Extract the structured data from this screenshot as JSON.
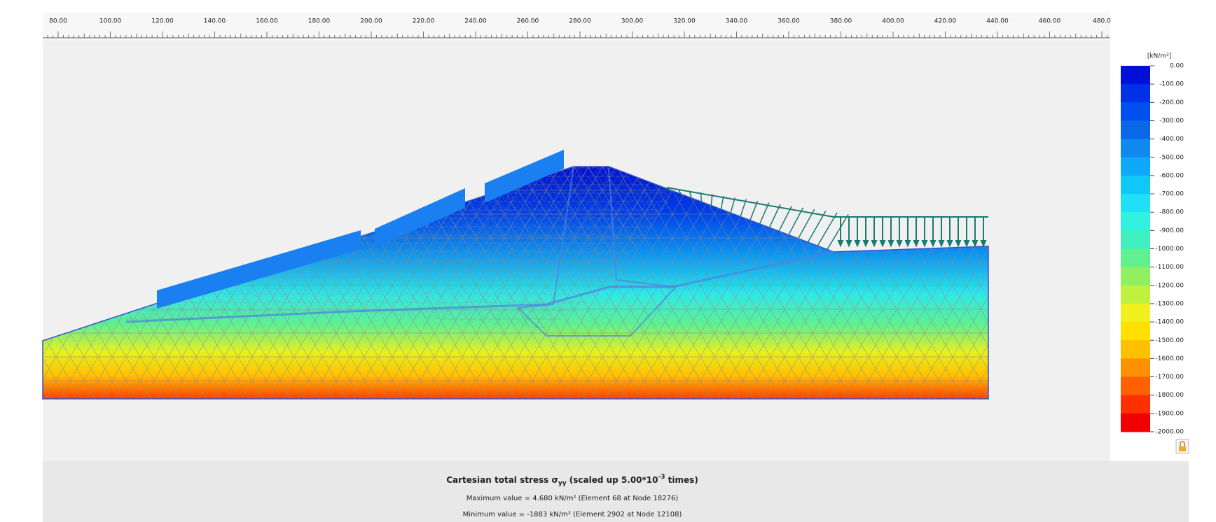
{
  "ruler": {
    "labels": [
      "80.00",
      "100.00",
      "120.00",
      "140.00",
      "160.00",
      "180.00",
      "200.00",
      "220.00",
      "240.00",
      "260.00",
      "280.00",
      "300.00",
      "320.00",
      "340.00",
      "360.00",
      "380.00",
      "400.00",
      "420.00",
      "440.00",
      "460.00",
      "480.0"
    ]
  },
  "legend": {
    "unit": "[kN/m²]",
    "labels": [
      "0.00",
      "-100.00",
      "-200.00",
      "-300.00",
      "-400.00",
      "-500.00",
      "-600.00",
      "-700.00",
      "-800.00",
      "-900.00",
      "-1000.00",
      "-1100.00",
      "-1200.00",
      "-1300.00",
      "-1400.00",
      "-1500.00",
      "-1600.00",
      "-1700.00",
      "-1800.00",
      "-1900.00",
      "-2000.00"
    ],
    "colors": [
      "#0010d8",
      "#0030e8",
      "#0050f0",
      "#0868e8",
      "#1088f0",
      "#10a8f8",
      "#10c8f8",
      "#20e0f8",
      "#30f0e0",
      "#40f0c0",
      "#60f090",
      "#90f060",
      "#c0f040",
      "#f0f020",
      "#ffe000",
      "#ffc000",
      "#ff9000",
      "#ff6000",
      "#ff3000",
      "#f00000"
    ]
  },
  "caption": {
    "title": [
      "Cartesian total stress σ",
      "yy",
      " (scaled up 5.00*10",
      "-3",
      " times)"
    ],
    "max": "Maximum value = 4.680 kN/m² (Element 68 at Node 18276)",
    "min": "Minimum value = -1883 kN/m² (Element 2902 at Node 12108)"
  }
}
